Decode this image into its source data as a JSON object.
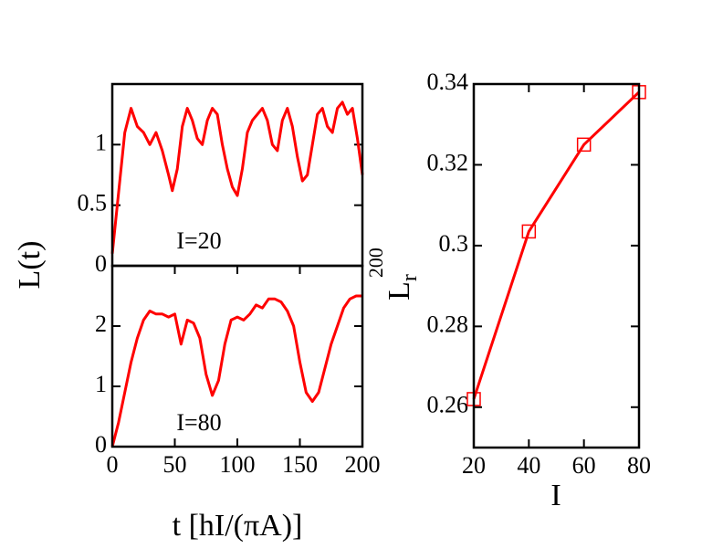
{
  "chart_data": [
    {
      "type": "line",
      "ylabel": "L(t)",
      "annotation": "I=20",
      "x": [
        0,
        5,
        10,
        15,
        20,
        25,
        30,
        35,
        40,
        45,
        48,
        52,
        56,
        60,
        64,
        68,
        72,
        76,
        80,
        84,
        88,
        92,
        96,
        100,
        104,
        108,
        112,
        116,
        120,
        124,
        128,
        132,
        136,
        140,
        144,
        148,
        152,
        156,
        160,
        164,
        168,
        172,
        176,
        180,
        184,
        188,
        192,
        196,
        200
      ],
      "series": [
        {
          "color": "#ff0000",
          "values": [
            0.1,
            0.6,
            1.1,
            1.3,
            1.15,
            1.1,
            1.0,
            1.1,
            0.95,
            0.75,
            0.62,
            0.8,
            1.15,
            1.3,
            1.2,
            1.05,
            1.0,
            1.2,
            1.3,
            1.25,
            1.0,
            0.8,
            0.65,
            0.58,
            0.8,
            1.1,
            1.2,
            1.25,
            1.3,
            1.2,
            1.0,
            0.95,
            1.2,
            1.3,
            1.15,
            0.9,
            0.7,
            0.75,
            1.0,
            1.25,
            1.3,
            1.15,
            1.1,
            1.3,
            1.35,
            1.25,
            1.3,
            1.05,
            0.75
          ]
        }
      ],
      "xlim": [
        0,
        200
      ],
      "ylim": [
        0,
        1.5
      ],
      "yticks": [
        0,
        0.5,
        1
      ]
    },
    {
      "type": "line",
      "xlabel": "t [hI/(πA)]",
      "annotation": "I=80",
      "x": [
        0,
        5,
        10,
        15,
        20,
        25,
        30,
        35,
        40,
        45,
        50,
        55,
        60,
        65,
        70,
        75,
        80,
        85,
        90,
        95,
        100,
        105,
        110,
        115,
        120,
        125,
        130,
        135,
        140,
        145,
        150,
        155,
        160,
        165,
        170,
        175,
        180,
        185,
        190,
        195,
        200
      ],
      "series": [
        {
          "color": "#ff0000",
          "values": [
            0,
            0.4,
            0.9,
            1.4,
            1.8,
            2.1,
            2.25,
            2.2,
            2.2,
            2.15,
            2.2,
            1.7,
            2.1,
            2.05,
            1.8,
            1.2,
            0.85,
            1.1,
            1.7,
            2.1,
            2.15,
            2.1,
            2.2,
            2.35,
            2.3,
            2.45,
            2.45,
            2.4,
            2.25,
            2.0,
            1.4,
            0.9,
            0.75,
            0.9,
            1.3,
            1.7,
            2.0,
            2.3,
            2.45,
            2.5,
            2.5
          ]
        }
      ],
      "xlim": [
        0,
        200
      ],
      "xticks": [
        0,
        50,
        100,
        150,
        200
      ],
      "ylim": [
        0,
        3
      ],
      "yticks": [
        0,
        1,
        2
      ]
    },
    {
      "type": "line",
      "xlabel": "I",
      "ylabel": {
        "main": "L",
        "sub": "r",
        "sup": "200"
      },
      "markers": "square",
      "x": [
        20,
        40,
        60,
        80
      ],
      "series": [
        {
          "color": "#ff0000",
          "values": [
            0.262,
            0.3035,
            0.325,
            0.338
          ]
        }
      ],
      "xlim": [
        20,
        80
      ],
      "xticks": [
        20,
        40,
        60,
        80
      ],
      "ylim": [
        0.25,
        0.34
      ],
      "yticks": [
        0.26,
        0.28,
        0.3,
        0.32,
        0.34
      ]
    }
  ]
}
